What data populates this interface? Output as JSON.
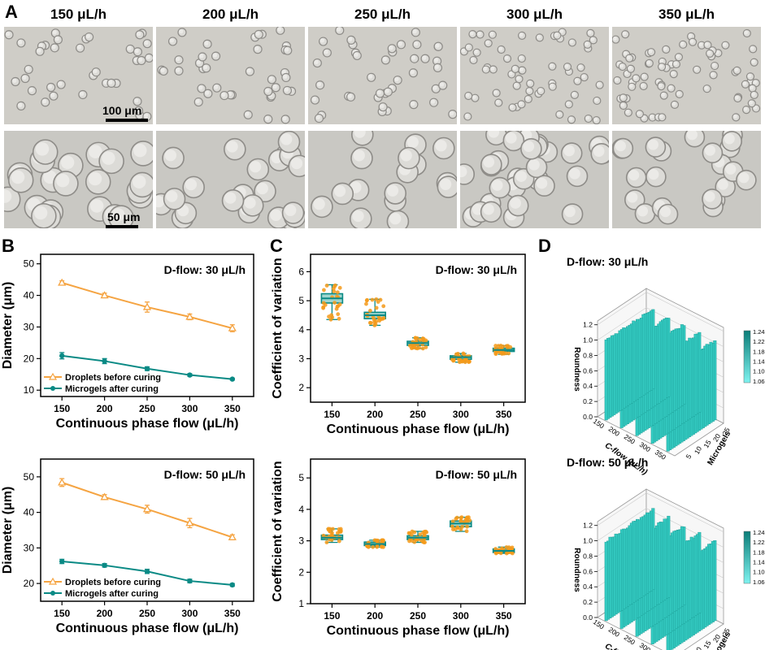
{
  "panels": {
    "A": "A",
    "B": "B",
    "C": "C",
    "D": "D"
  },
  "microscopy": {
    "flow_labels": [
      "150 μL/h",
      "200 μL/h",
      "250 μL/h",
      "300 μL/h",
      "350 μL/h"
    ],
    "scale_top": "100 μm",
    "scale_bottom": "50 μm"
  },
  "colors": {
    "droplets": "#f5a442",
    "microgels": "#0a8a85",
    "box_fill": "#4fb3a8",
    "bars": "#33c9c0",
    "scatter": "#f59a1a"
  },
  "chart_data": [
    {
      "id": "B-top",
      "type": "line",
      "annotation": "D-flow: 30 μL/h",
      "xlabel": "Continuous phase flow (μL/h)",
      "ylabel": "Diameter (μm)",
      "x": [
        150,
        200,
        250,
        300,
        350
      ],
      "xlim": [
        125,
        375
      ],
      "ylim": [
        8,
        53
      ],
      "yticks": [
        10,
        20,
        30,
        40,
        50
      ],
      "series": [
        {
          "name": "Droplets before curing",
          "values": [
            44,
            40,
            36.3,
            33.2,
            29.6
          ],
          "errors": [
            0.6,
            0.7,
            1.6,
            0.9,
            1.1
          ]
        },
        {
          "name": "Microgels after curing",
          "values": [
            20.9,
            19.2,
            16.8,
            14.8,
            13.5
          ],
          "errors": [
            1.0,
            0.8,
            0.6,
            0.4,
            0.3
          ]
        }
      ]
    },
    {
      "id": "B-bottom",
      "type": "line",
      "annotation": "D-flow: 50 μL/h",
      "xlabel": "Continuous phase flow (μL/h)",
      "ylabel": "Diameter (μm)",
      "x": [
        150,
        200,
        250,
        300,
        350
      ],
      "xlim": [
        125,
        375
      ],
      "ylim": [
        15,
        55
      ],
      "yticks": [
        20,
        30,
        40,
        50
      ],
      "series": [
        {
          "name": "Droplets before curing",
          "values": [
            48.4,
            44.3,
            40.9,
            37,
            33
          ],
          "errors": [
            1.1,
            0.7,
            1.1,
            1.3,
            0.7
          ]
        },
        {
          "name": "Microgels after curing",
          "values": [
            26.2,
            25.1,
            23.4,
            20.7,
            19.6
          ],
          "errors": [
            0.6,
            0.5,
            0.6,
            0.5,
            0.4
          ]
        }
      ]
    },
    {
      "id": "C-top",
      "type": "box",
      "annotation": "D-flow: 30 μL/h",
      "xlabel": "Continuous phase flow (μL/h)",
      "ylabel": "Coefficient of variation",
      "categories": [
        "150",
        "200",
        "250",
        "300",
        "350"
      ],
      "ylim": [
        1.5,
        6.6
      ],
      "yticks": [
        2,
        3,
        4,
        5,
        6
      ],
      "boxes": [
        {
          "min": 4.35,
          "q1": 4.92,
          "median": 5.08,
          "q3": 5.24,
          "max": 5.55
        },
        {
          "min": 4.15,
          "q1": 4.38,
          "median": 4.5,
          "q3": 4.6,
          "max": 5.05
        },
        {
          "min": 3.35,
          "q1": 3.46,
          "median": 3.54,
          "q3": 3.6,
          "max": 3.72
        },
        {
          "min": 2.88,
          "q1": 2.98,
          "median": 3.05,
          "q3": 3.1,
          "max": 3.18
        },
        {
          "min": 3.15,
          "q1": 3.25,
          "median": 3.3,
          "q3": 3.36,
          "max": 3.45
        }
      ]
    },
    {
      "id": "C-bottom",
      "type": "box",
      "annotation": "D-flow: 50 μL/h",
      "xlabel": "Continuous phase flow (μL/h)",
      "ylabel": "Coefficient of variation",
      "categories": [
        "150",
        "200",
        "250",
        "300",
        "350"
      ],
      "ylim": [
        1,
        5.6
      ],
      "yticks": [
        1,
        2,
        3,
        4,
        5
      ],
      "boxes": [
        {
          "min": 2.95,
          "q1": 3.04,
          "median": 3.1,
          "q3": 3.18,
          "max": 3.38
        },
        {
          "min": 2.8,
          "q1": 2.85,
          "median": 2.9,
          "q3": 2.96,
          "max": 3.02
        },
        {
          "min": 2.95,
          "q1": 3.04,
          "median": 3.1,
          "q3": 3.16,
          "max": 3.3
        },
        {
          "min": 3.3,
          "q1": 3.45,
          "median": 3.55,
          "q3": 3.63,
          "max": 3.75
        },
        {
          "min": 2.6,
          "q1": 2.63,
          "median": 2.68,
          "q3": 2.74,
          "max": 2.8
        }
      ]
    },
    {
      "id": "D-top",
      "type": "bar3d",
      "annotation": "D-flow: 30 μL/h",
      "xlabel": "C-flow (μL/h)",
      "ylabel": "Microgels",
      "zlabel": "Roundness",
      "zticks": [
        "0.0",
        "0.2",
        "0.4",
        "0.6",
        "0.8",
        "1.0",
        "1.2"
      ],
      "c_flow_ticks": [
        "150",
        "200",
        "250",
        "300",
        "350"
      ],
      "microgel_ticks": [
        "5",
        "10",
        "15",
        "20",
        "25"
      ],
      "colorbar_ticks": [
        "1.24",
        "1.22",
        "1.18",
        "1.14",
        "1.10",
        "1.06"
      ],
      "roundness_range": [
        1.02,
        1.06
      ]
    },
    {
      "id": "D-bottom",
      "type": "bar3d",
      "annotation": "D-flow: 50 μL/h",
      "xlabel": "C-flow (μL/h)",
      "ylabel": "Microgels",
      "zlabel": "Roundness",
      "zticks": [
        "0.0",
        "0.2",
        "0.4",
        "0.6",
        "0.8",
        "1.0",
        "1.2"
      ],
      "c_flow_ticks": [
        "150",
        "200",
        "250",
        "300",
        "350"
      ],
      "microgel_ticks": [
        "5",
        "10",
        "15",
        "20",
        "25"
      ],
      "colorbar_ticks": [
        "1.24",
        "1.22",
        "1.18",
        "1.14",
        "1.10",
        "1.06"
      ],
      "roundness_range": [
        1.02,
        1.06
      ]
    }
  ]
}
